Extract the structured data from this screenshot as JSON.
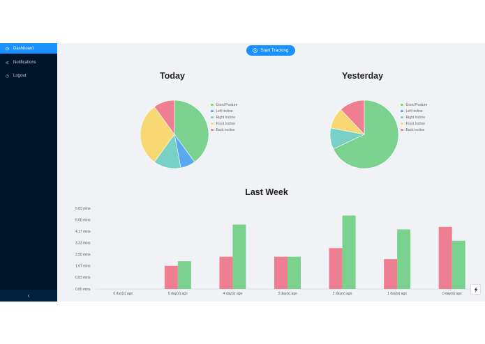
{
  "sidebar": {
    "items": [
      {
        "label": "Dashboard",
        "icon": "dashboard-icon"
      },
      {
        "label": "Notifications",
        "icon": "notification-icon"
      },
      {
        "label": "Logout",
        "icon": "logout-icon"
      }
    ],
    "collapse_glyph": "‹"
  },
  "header": {
    "start_tracking_label": "Start Tracking"
  },
  "colors": {
    "accent": "#1890ff",
    "good_posture": "#7bd18e",
    "left_incline": "#5aa9f0",
    "right_incline": "#78d0c6",
    "front_incline": "#f7d873",
    "back_incline": "#ee7e92"
  },
  "chart_data": [
    {
      "type": "pie",
      "title": "Today",
      "labels": [
        "Good Posture",
        "Left Incline",
        "Right Incline",
        "Front Incline",
        "Back Incline"
      ],
      "values": [
        40,
        7,
        13,
        30,
        10
      ]
    },
    {
      "type": "pie",
      "title": "Yesterday",
      "labels": [
        "Good Posture",
        "Left Incline",
        "Right Incline",
        "Front Incline",
        "Back Incline"
      ],
      "values": [
        68,
        0,
        10,
        10,
        12
      ]
    },
    {
      "type": "bar",
      "title": "Last Week",
      "categories": [
        "6 day(s) ago",
        "5 day(s) ago",
        "4 day(s) ago",
        "3 day(s) ago",
        "2 day(s) ago",
        "1 day(s) ago",
        "0 day(s) ago"
      ],
      "y_ticks": [
        "0.00 mins",
        "0.83 mins",
        "1.67 mins",
        "2.50 mins",
        "3.33 mins",
        "4.17 mins",
        "5.00 mins",
        "5.83 mins"
      ],
      "ylim": [
        0,
        5.83
      ],
      "series": [
        {
          "color": "#ee7e92",
          "values": [
            0,
            1.67,
            2.33,
            2.33,
            2.95,
            2.15,
            4.48
          ]
        },
        {
          "color": "#7bd18e",
          "values": [
            0,
            2.0,
            4.65,
            2.33,
            5.3,
            4.3,
            3.48
          ]
        }
      ]
    }
  ]
}
